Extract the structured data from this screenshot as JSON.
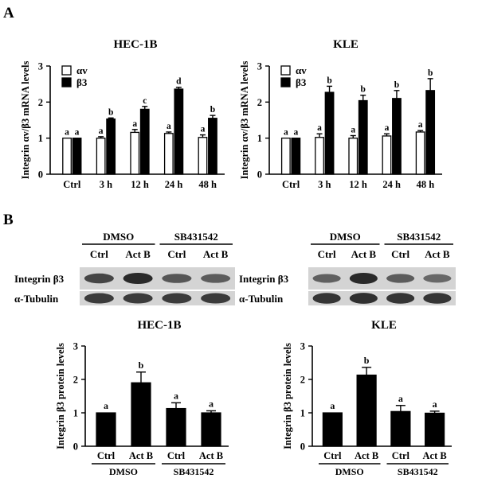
{
  "panel_labels": {
    "a": "A",
    "b": "B"
  },
  "colors": {
    "bar_fill": "#000000",
    "bar_white": "#ffffff",
    "axis": "#000000",
    "blot_bg": "#d4d4d4",
    "band": "#2a2a2a"
  },
  "chart_data": [
    {
      "id": "hec1b_mrna",
      "type": "bar",
      "title": "HEC-1B",
      "ylabel": "Integrin αv/β3 mRNA levels",
      "xlabel": "",
      "ylim": [
        0,
        3
      ],
      "yticks": [
        "0",
        "1",
        "2",
        "3"
      ],
      "categories": [
        "Ctrl",
        "3 h",
        "12 h",
        "24 h",
        "48 h"
      ],
      "legend": {
        "position": "top-left",
        "entries": [
          "αv",
          "β3"
        ]
      },
      "series": [
        {
          "name": "αv",
          "color": "#ffffff",
          "values": [
            1.0,
            1.0,
            1.16,
            1.13,
            1.02
          ],
          "errors": [
            0.0,
            0.04,
            0.08,
            0.04,
            0.07
          ],
          "labels": [
            "a",
            "a",
            "a",
            "a",
            "a"
          ]
        },
        {
          "name": "β3",
          "color": "#000000",
          "values": [
            1.0,
            1.53,
            1.8,
            2.36,
            1.55
          ],
          "errors": [
            0.0,
            0.03,
            0.08,
            0.05,
            0.08
          ],
          "labels": [
            "a",
            "b",
            "c",
            "d",
            "b"
          ]
        }
      ]
    },
    {
      "id": "kle_mrna",
      "type": "bar",
      "title": "KLE",
      "ylabel": "Integrin αv/β3 mRNA levels",
      "xlabel": "",
      "ylim": [
        0,
        3
      ],
      "yticks": [
        "0",
        "1",
        "2",
        "3"
      ],
      "categories": [
        "Ctrl",
        "3 h",
        "12 h",
        "24 h",
        "48 h"
      ],
      "legend": {
        "position": "top-left",
        "entries": [
          "αv",
          "β3"
        ]
      },
      "series": [
        {
          "name": "αv",
          "color": "#ffffff",
          "values": [
            1.0,
            1.02,
            1.0,
            1.06,
            1.17
          ],
          "errors": [
            0.0,
            0.1,
            0.07,
            0.06,
            0.04
          ],
          "labels": [
            "a",
            "a",
            "a",
            "a",
            "a"
          ]
        },
        {
          "name": "β3",
          "color": "#000000",
          "values": [
            1.0,
            2.27,
            2.04,
            2.1,
            2.32
          ],
          "errors": [
            0.0,
            0.17,
            0.15,
            0.22,
            0.33
          ],
          "labels": [
            "a",
            "b",
            "b",
            "b",
            "b"
          ]
        }
      ]
    },
    {
      "id": "hec1b_protein",
      "type": "bar",
      "title": "HEC-1B",
      "ylabel": "Integrin β3 protein levels",
      "ylim": [
        0,
        3
      ],
      "yticks": [
        "0",
        "1",
        "2",
        "3"
      ],
      "categories": [
        "Ctrl",
        "Act B",
        "Ctrl",
        "Act B"
      ],
      "groups": [
        "DMSO",
        "SB431542"
      ],
      "series": [
        {
          "name": "Integrin β3",
          "color": "#000000",
          "values": [
            1.0,
            1.9,
            1.13,
            1.0
          ],
          "errors": [
            0.0,
            0.32,
            0.17,
            0.06
          ],
          "labels": [
            "a",
            "b",
            "a",
            "a"
          ]
        }
      ]
    },
    {
      "id": "kle_protein",
      "type": "bar",
      "title": "KLE",
      "ylabel": "Integrin β3 protein levels",
      "ylim": [
        0,
        3
      ],
      "yticks": [
        "0",
        "1",
        "2",
        "3"
      ],
      "categories": [
        "Ctrl",
        "Act B",
        "Ctrl",
        "Act B"
      ],
      "groups": [
        "DMSO",
        "SB431542"
      ],
      "series": [
        {
          "name": "Integrin β3",
          "color": "#000000",
          "values": [
            1.0,
            2.13,
            1.04,
            0.99
          ],
          "errors": [
            0.0,
            0.23,
            0.18,
            0.06
          ],
          "labels": [
            "a",
            "b",
            "a",
            "a"
          ]
        }
      ]
    }
  ],
  "blots": [
    {
      "id": "hec1b_blot",
      "groups": [
        "DMSO",
        "SB431542"
      ],
      "lanes": [
        "Ctrl",
        "Act B",
        "Ctrl",
        "Act B"
      ],
      "rows": [
        {
          "label": "Integrin β3",
          "intensities": [
            0.75,
            1.0,
            0.6,
            0.55
          ]
        },
        {
          "label": "α-Tubulin",
          "intensities": [
            0.85,
            0.85,
            0.85,
            0.85
          ]
        }
      ]
    },
    {
      "id": "kle_blot",
      "groups": [
        "DMSO",
        "SB431542"
      ],
      "lanes": [
        "Ctrl",
        "Act B",
        "Ctrl",
        "Act B"
      ],
      "rows": [
        {
          "label": "Integrin β3",
          "intensities": [
            0.5,
            1.0,
            0.55,
            0.45
          ]
        },
        {
          "label": "α-Tubulin",
          "intensities": [
            0.9,
            0.95,
            0.9,
            0.9
          ]
        }
      ]
    }
  ]
}
